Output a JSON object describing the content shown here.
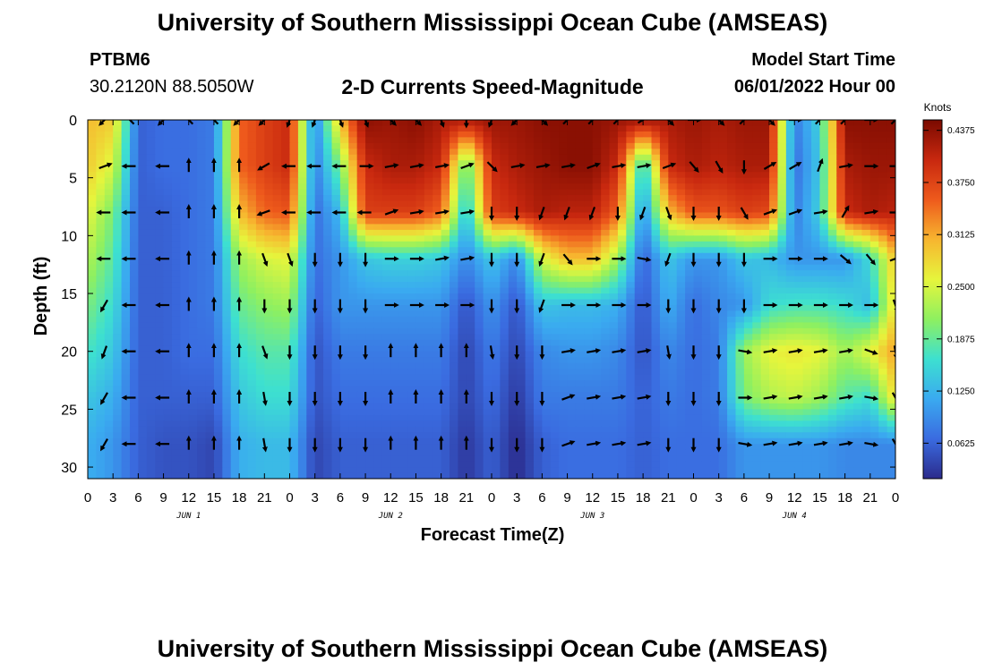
{
  "titles": {
    "main": "University of Southern Mississippi Ocean Cube (AMSEAS)",
    "bottom": "University of Southern Mississippi Ocean Cube (AMSEAS)"
  },
  "station": {
    "name": "PTBM6",
    "coords": "30.2120N  88.5050W"
  },
  "panel_title": "2-D Currents Speed-Magnitude",
  "model_start": {
    "label": "Model Start Time",
    "value": "06/01/2022 Hour 00"
  },
  "colors": {
    "scale": [
      "#2b2b8c",
      "#3a6be0",
      "#3aaaf0",
      "#3de0d0",
      "#8ef060",
      "#e6f53c",
      "#f7b52f",
      "#ee5a1c",
      "#c8280f",
      "#7a0a00"
    ]
  },
  "chart_data": {
    "type": "heatmap",
    "title": "2-D Currents Speed-Magnitude",
    "xlabel": "Forecast Time(Z)",
    "ylabel": "Depth (ft)",
    "x_hours": [
      0,
      3,
      6,
      9,
      12,
      15,
      18,
      21,
      24,
      27,
      30,
      33,
      36,
      39,
      42,
      45,
      48,
      51,
      54,
      57,
      60,
      63,
      66,
      69,
      72,
      75,
      78,
      81,
      84,
      87,
      90,
      93,
      96
    ],
    "x_tick_labels": [
      "0",
      "3",
      "6",
      "9",
      "12",
      "15",
      "18",
      "21",
      "0",
      "3",
      "6",
      "9",
      "12",
      "15",
      "18",
      "21",
      "0",
      "3",
      "6",
      "9",
      "12",
      "15",
      "18",
      "21",
      "0",
      "3",
      "6",
      "9",
      "12",
      "15",
      "18",
      "21",
      "0"
    ],
    "date_labels": [
      {
        "label": "JUN 1",
        "hour": 12
      },
      {
        "label": "JUN 2",
        "hour": 36
      },
      {
        "label": "JUN 3",
        "hour": 60
      },
      {
        "label": "JUN 4",
        "hour": 84
      }
    ],
    "y_ticks": [
      0,
      5,
      10,
      15,
      20,
      25,
      30
    ],
    "ylim": [
      31,
      0
    ],
    "xlim": [
      0,
      96
    ],
    "depth_rows": [
      0,
      4,
      8,
      12,
      16,
      20,
      24,
      28
    ],
    "colorbar": {
      "label": "Knots",
      "ticks": [
        "0.4375",
        "0.3750",
        "0.3125",
        "0.2500",
        "0.1875",
        "0.1250",
        "0.0625"
      ],
      "tick_values": [
        0.4375,
        0.375,
        0.3125,
        0.25,
        0.1875,
        0.125,
        0.0625
      ],
      "range": [
        0.02,
        0.45
      ]
    },
    "arrow_hours": [
      2,
      5,
      9,
      12,
      15,
      18,
      21,
      24,
      27,
      30,
      33,
      36,
      39,
      42,
      45,
      48,
      51,
      54,
      57,
      60,
      63,
      66,
      69,
      72,
      75,
      78,
      81,
      84,
      87,
      90,
      93,
      96
    ],
    "speed_knots": [
      [
        0.3,
        0.29,
        0.06,
        0.07,
        0.07,
        0.08,
        0.35,
        0.38,
        0.4,
        0.08,
        0.3,
        0.44,
        0.43,
        0.44,
        0.42,
        0.42,
        0.43,
        0.43,
        0.44,
        0.44,
        0.44,
        0.43,
        0.43,
        0.42,
        0.43,
        0.42,
        0.43,
        0.43,
        0.08,
        0.15,
        0.44,
        0.44,
        0.44
      ],
      [
        0.29,
        0.25,
        0.06,
        0.07,
        0.07,
        0.08,
        0.35,
        0.38,
        0.4,
        0.08,
        0.2,
        0.4,
        0.42,
        0.42,
        0.4,
        0.18,
        0.4,
        0.42,
        0.43,
        0.44,
        0.44,
        0.4,
        0.14,
        0.4,
        0.42,
        0.41,
        0.42,
        0.42,
        0.07,
        0.14,
        0.42,
        0.43,
        0.43
      ],
      [
        0.26,
        0.2,
        0.06,
        0.06,
        0.07,
        0.08,
        0.3,
        0.35,
        0.36,
        0.07,
        0.13,
        0.38,
        0.38,
        0.38,
        0.35,
        0.13,
        0.38,
        0.4,
        0.42,
        0.41,
        0.41,
        0.35,
        0.09,
        0.3,
        0.36,
        0.36,
        0.38,
        0.37,
        0.08,
        0.15,
        0.4,
        0.42,
        0.41
      ],
      [
        0.23,
        0.18,
        0.06,
        0.06,
        0.07,
        0.08,
        0.22,
        0.25,
        0.26,
        0.07,
        0.1,
        0.14,
        0.15,
        0.15,
        0.14,
        0.09,
        0.14,
        0.09,
        0.25,
        0.3,
        0.3,
        0.22,
        0.06,
        0.14,
        0.1,
        0.1,
        0.14,
        0.13,
        0.1,
        0.1,
        0.1,
        0.16,
        0.3
      ],
      [
        0.2,
        0.16,
        0.06,
        0.06,
        0.07,
        0.08,
        0.19,
        0.21,
        0.22,
        0.06,
        0.1,
        0.1,
        0.1,
        0.1,
        0.1,
        0.05,
        0.1,
        0.05,
        0.14,
        0.13,
        0.13,
        0.12,
        0.05,
        0.12,
        0.07,
        0.09,
        0.1,
        0.16,
        0.17,
        0.17,
        0.16,
        0.13,
        0.28
      ],
      [
        0.17,
        0.14,
        0.06,
        0.06,
        0.07,
        0.07,
        0.16,
        0.18,
        0.18,
        0.05,
        0.08,
        0.08,
        0.08,
        0.08,
        0.08,
        0.04,
        0.08,
        0.04,
        0.09,
        0.1,
        0.1,
        0.09,
        0.05,
        0.09,
        0.07,
        0.08,
        0.22,
        0.26,
        0.27,
        0.26,
        0.22,
        0.26,
        0.32
      ],
      [
        0.14,
        0.12,
        0.06,
        0.06,
        0.06,
        0.06,
        0.14,
        0.16,
        0.16,
        0.05,
        0.07,
        0.07,
        0.07,
        0.07,
        0.07,
        0.04,
        0.07,
        0.03,
        0.08,
        0.08,
        0.08,
        0.08,
        0.06,
        0.08,
        0.07,
        0.08,
        0.2,
        0.23,
        0.24,
        0.22,
        0.18,
        0.16,
        0.28
      ],
      [
        0.12,
        0.1,
        0.06,
        0.05,
        0.05,
        0.04,
        0.12,
        0.13,
        0.13,
        0.04,
        0.06,
        0.06,
        0.06,
        0.06,
        0.06,
        0.03,
        0.06,
        0.02,
        0.06,
        0.07,
        0.07,
        0.07,
        0.06,
        0.07,
        0.07,
        0.07,
        0.1,
        0.1,
        0.1,
        0.1,
        0.09,
        0.09,
        0.09
      ]
    ],
    "current_direction_deg": [
      [
        225,
        315,
        225,
        315,
        315,
        225,
        225,
        200,
        200,
        160,
        160,
        135,
        135,
        160,
        180,
        200,
        225,
        135,
        45,
        45,
        45,
        60,
        135,
        90,
        135,
        45,
        135,
        90,
        45,
        45,
        90,
        45,
        135
      ],
      [
        70,
        270,
        270,
        0,
        0,
        0,
        240,
        270,
        270,
        270,
        90,
        80,
        80,
        80,
        70,
        135,
        80,
        80,
        80,
        70,
        80,
        80,
        70,
        140,
        150,
        180,
        60,
        60,
        20,
        80,
        90,
        90,
        270
      ],
      [
        270,
        270,
        270,
        0,
        0,
        0,
        250,
        270,
        270,
        270,
        270,
        70,
        80,
        80,
        80,
        180,
        180,
        200,
        200,
        200,
        180,
        200,
        160,
        180,
        180,
        150,
        70,
        70,
        80,
        30,
        80,
        90,
        90
      ],
      [
        270,
        270,
        270,
        0,
        0,
        0,
        160,
        160,
        180,
        180,
        180,
        90,
        90,
        80,
        80,
        180,
        180,
        200,
        140,
        90,
        90,
        100,
        200,
        180,
        180,
        180,
        90,
        90,
        90,
        130,
        140,
        70,
        70
      ],
      [
        210,
        270,
        270,
        0,
        0,
        0,
        180,
        180,
        180,
        180,
        180,
        90,
        90,
        90,
        90,
        180,
        180,
        200,
        90,
        90,
        90,
        90,
        180,
        180,
        180,
        180,
        90,
        90,
        90,
        90,
        90,
        160,
        160
      ],
      [
        200,
        270,
        270,
        0,
        0,
        0,
        160,
        180,
        180,
        180,
        180,
        0,
        0,
        0,
        0,
        170,
        180,
        180,
        80,
        80,
        80,
        80,
        170,
        180,
        180,
        100,
        80,
        80,
        80,
        80,
        110,
        170,
        170
      ],
      [
        210,
        270,
        270,
        0,
        0,
        0,
        170,
        180,
        180,
        180,
        180,
        0,
        0,
        0,
        0,
        180,
        180,
        180,
        70,
        80,
        80,
        80,
        180,
        180,
        180,
        90,
        80,
        80,
        80,
        80,
        100,
        150,
        150
      ],
      [
        210,
        270,
        270,
        0,
        0,
        0,
        170,
        180,
        180,
        180,
        180,
        0,
        0,
        0,
        0,
        180,
        180,
        180,
        70,
        80,
        80,
        80,
        180,
        180,
        180,
        100,
        80,
        80,
        80,
        80,
        100,
        150,
        150
      ]
    ]
  }
}
